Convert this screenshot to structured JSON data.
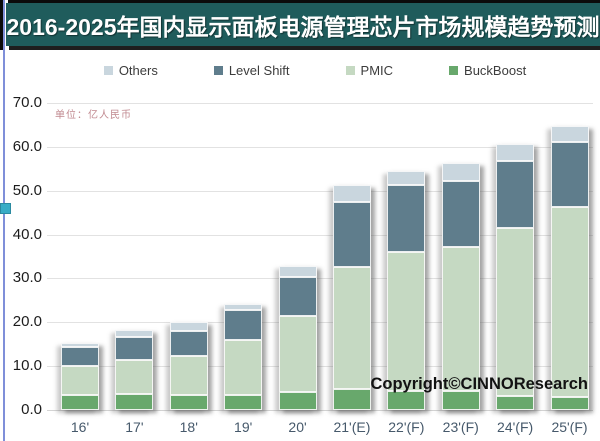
{
  "title": "2016-2025年国内显示面板电源管理芯片市场规模趋势预测",
  "unit_label": "单位：亿人民币",
  "copyright": "Copyright©CINNOResearch",
  "colors": {
    "title_bar_bg": "#1f5c5c",
    "title_text": "#ffffff",
    "unit_text": "#c18a90",
    "y_axis_text": "#1c1c1c",
    "x_axis_text": "#46596b",
    "copyright_text": "#121212",
    "gridline": "#e2e2e2",
    "guide_line": "#7f8fd9",
    "selection_handle": "#38acc6"
  },
  "chart_data": {
    "type": "bar",
    "stacked": true,
    "title": "2016-2025年国内显示面板电源管理芯片市场规模趋势预测",
    "ylabel": "亿人民币",
    "xlabel": "",
    "ylim": [
      0,
      70
    ],
    "ytick_step": 10,
    "ytick_labels": [
      "0.0",
      "10.0",
      "20.0",
      "30.0",
      "40.0",
      "50.0",
      "60.0",
      "70.0"
    ],
    "grid": true,
    "legend_position": "top",
    "legend_order": [
      "Others",
      "Level Shift",
      "PMIC",
      "BuckBoost"
    ],
    "categories": [
      "16'",
      "17'",
      "18'",
      "19'",
      "20'",
      "21'(E)",
      "22'(F)",
      "23'(F)",
      "24'(F)",
      "25'(F)"
    ],
    "series": [
      {
        "name": "BuckBoost",
        "color": "#68a86c",
        "values": [
          3.4,
          3.6,
          3.4,
          3.4,
          4.0,
          4.8,
          4.4,
          4.4,
          3.2,
          3.0
        ]
      },
      {
        "name": "PMIC",
        "color": "#c5d9c2",
        "values": [
          6.6,
          7.8,
          8.9,
          12.5,
          17.4,
          27.8,
          31.7,
          32.8,
          38.4,
          43.3
        ]
      },
      {
        "name": "Level Shift",
        "color": "#5f7d8c",
        "values": [
          4.3,
          5.3,
          5.8,
          6.8,
          9.0,
          14.8,
          15.1,
          14.9,
          15.1,
          14.7
        ]
      },
      {
        "name": "Others",
        "color": "#c9d6de",
        "values": [
          1.0,
          1.6,
          1.9,
          1.4,
          2.5,
          4.0,
          3.4,
          4.2,
          3.9,
          3.8
        ]
      }
    ],
    "totals": [
      15.3,
      18.3,
      20.0,
      24.1,
      32.9,
      51.4,
      54.6,
      56.3,
      60.6,
      64.8
    ]
  }
}
